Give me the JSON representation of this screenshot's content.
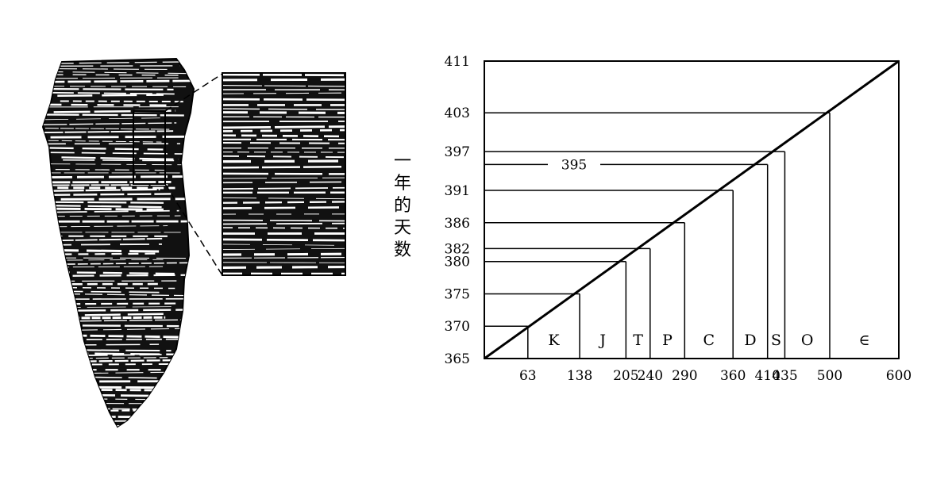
{
  "coral_illustration": {
    "icon": "horn-coral-fossil-with-growth-bands",
    "inset_icon": "growth-band-closeup"
  },
  "y_axis_label": "一年的天数",
  "chart_data": {
    "type": "line",
    "title": "",
    "xlabel": "",
    "ylabel": "一年的天数",
    "xlim": [
      0,
      600
    ],
    "ylim": [
      365,
      411
    ],
    "grid": false,
    "line": {
      "x": [
        0,
        600
      ],
      "y": [
        365,
        411
      ]
    },
    "x_ticks": [
      {
        "value": 63,
        "label": "63"
      },
      {
        "value": 138,
        "label": "138"
      },
      {
        "value": 205,
        "label": "205"
      },
      {
        "value": 240,
        "label": "240"
      },
      {
        "value": 290,
        "label": "290"
      },
      {
        "value": 360,
        "label": "360"
      },
      {
        "value": 410,
        "label": "410"
      },
      {
        "value": 435,
        "label": "435"
      },
      {
        "value": 500,
        "label": "500"
      },
      {
        "value": 600,
        "label": "600"
      }
    ],
    "y_ticks": [
      {
        "value": 365,
        "label": "365"
      },
      {
        "value": 370,
        "label": "370"
      },
      {
        "value": 375,
        "label": "375"
      },
      {
        "value": 380,
        "label": "380"
      },
      {
        "value": 382,
        "label": "382"
      },
      {
        "value": 386,
        "label": "386"
      },
      {
        "value": 391,
        "label": "391"
      },
      {
        "value": 397,
        "label": "397"
      },
      {
        "value": 403,
        "label": "403"
      },
      {
        "value": 411,
        "label": "411"
      }
    ],
    "markers": [
      {
        "x": 63,
        "y": 370
      },
      {
        "x": 138,
        "y": 375
      },
      {
        "x": 205,
        "y": 380
      },
      {
        "x": 240,
        "y": 382
      },
      {
        "x": 290,
        "y": 386
      },
      {
        "x": 360,
        "y": 391
      },
      {
        "x": 410,
        "y": 395
      },
      {
        "x": 435,
        "y": 397
      },
      {
        "x": 500,
        "y": 403
      }
    ],
    "inner_annotation": {
      "label": "395",
      "y": 395
    },
    "periods": [
      {
        "label": "K",
        "from": 63,
        "to": 138
      },
      {
        "label": "J",
        "from": 138,
        "to": 205
      },
      {
        "label": "T",
        "from": 205,
        "to": 240
      },
      {
        "label": "P",
        "from": 240,
        "to": 290
      },
      {
        "label": "C",
        "from": 290,
        "to": 360
      },
      {
        "label": "D",
        "from": 360,
        "to": 410
      },
      {
        "label": "S",
        "from": 410,
        "to": 435
      },
      {
        "label": "O",
        "from": 435,
        "to": 500
      },
      {
        "label": "∈",
        "from": 500,
        "to": 600
      }
    ]
  }
}
